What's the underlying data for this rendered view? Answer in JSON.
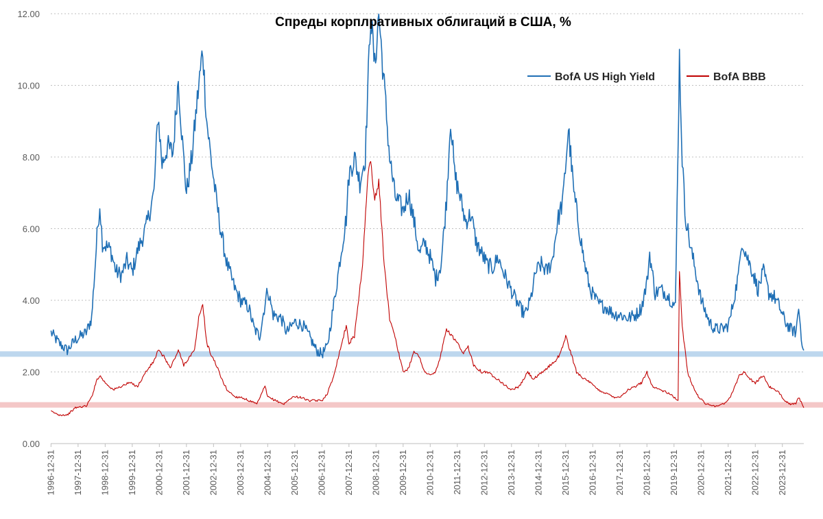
{
  "chart_data": {
    "type": "line",
    "title": "Спреды корплративных облигаций в США, %",
    "xlabel": "",
    "ylabel": "",
    "ylim": [
      0,
      12
    ],
    "y_ticks": [
      "0.00",
      "2.00",
      "4.00",
      "6.00",
      "8.00",
      "10.00",
      "12.00"
    ],
    "x_range": [
      1996.99,
      2024.79
    ],
    "x_ticks": [
      "1996-12-31",
      "1997-12-31",
      "1998-12-31",
      "1999-12-31",
      "2000-12-31",
      "2001-12-31",
      "2002-12-31",
      "2003-12-31",
      "2004-12-31",
      "2005-12-31",
      "2006-12-31",
      "2007-12-31",
      "2008-12-31",
      "2009-12-31",
      "2010-12-31",
      "2011-12-31",
      "2012-12-31",
      "2013-12-31",
      "2014-12-31",
      "2015-12-31",
      "2016-12-31",
      "2017-12-31",
      "2018-12-31",
      "2019-12-31",
      "2020-12-31",
      "2021-12-31",
      "2022-12-31",
      "2023-12-31"
    ],
    "grid": "horizontal-dotted",
    "legend": "top-right",
    "series": [
      {
        "name": "BofA US High Yield",
        "color": "#1f6fb5",
        "points": [
          [
            1997.0,
            3.1
          ],
          [
            1997.3,
            2.8
          ],
          [
            1997.6,
            2.6
          ],
          [
            1997.9,
            2.9
          ],
          [
            1998.3,
            3.1
          ],
          [
            1998.5,
            3.5
          ],
          [
            1998.7,
            5.8
          ],
          [
            1998.8,
            6.7
          ],
          [
            1998.9,
            5.6
          ],
          [
            1999.2,
            5.4
          ],
          [
            1999.4,
            4.8
          ],
          [
            1999.6,
            4.7
          ],
          [
            1999.8,
            5.1
          ],
          [
            2000.0,
            4.8
          ],
          [
            2000.2,
            5.4
          ],
          [
            2000.5,
            6.0
          ],
          [
            2000.8,
            7.0
          ],
          [
            2000.95,
            9.2
          ],
          [
            2001.1,
            7.8
          ],
          [
            2001.3,
            8.3
          ],
          [
            2001.5,
            8.1
          ],
          [
            2001.7,
            10.2
          ],
          [
            2001.85,
            8.4
          ],
          [
            2002.0,
            7.0
          ],
          [
            2002.2,
            8.0
          ],
          [
            2002.4,
            9.6
          ],
          [
            2002.6,
            11.0
          ],
          [
            2002.75,
            9.0
          ],
          [
            2002.9,
            8.0
          ],
          [
            2003.1,
            6.8
          ],
          [
            2003.3,
            5.8
          ],
          [
            2003.5,
            5.0
          ],
          [
            2003.8,
            4.3
          ],
          [
            2004.0,
            4.0
          ],
          [
            2004.3,
            3.8
          ],
          [
            2004.5,
            3.2
          ],
          [
            2004.7,
            3.0
          ],
          [
            2004.9,
            3.9
          ],
          [
            2005.0,
            4.3
          ],
          [
            2005.2,
            3.6
          ],
          [
            2005.5,
            3.5
          ],
          [
            2005.7,
            3.1
          ],
          [
            2006.0,
            3.4
          ],
          [
            2006.3,
            3.3
          ],
          [
            2006.6,
            2.9
          ],
          [
            2006.8,
            2.6
          ],
          [
            2007.0,
            2.5
          ],
          [
            2007.2,
            2.7
          ],
          [
            2007.5,
            4.2
          ],
          [
            2007.7,
            5.3
          ],
          [
            2007.9,
            6.3
          ],
          [
            2008.0,
            7.5
          ],
          [
            2008.2,
            8.0
          ],
          [
            2008.4,
            7.3
          ],
          [
            2008.6,
            8.0
          ],
          [
            2008.8,
            12.0
          ],
          [
            2008.95,
            10.5
          ],
          [
            2009.1,
            12.0
          ],
          [
            2009.3,
            10.0
          ],
          [
            2009.5,
            8.0
          ],
          [
            2009.7,
            6.9
          ],
          [
            2010.0,
            6.5
          ],
          [
            2010.2,
            7.0
          ],
          [
            2010.4,
            6.2
          ],
          [
            2010.6,
            5.3
          ],
          [
            2010.8,
            5.6
          ],
          [
            2011.0,
            5.2
          ],
          [
            2011.2,
            4.6
          ],
          [
            2011.4,
            5.0
          ],
          [
            2011.6,
            6.8
          ],
          [
            2011.75,
            9.1
          ],
          [
            2011.9,
            7.5
          ],
          [
            2012.1,
            6.9
          ],
          [
            2012.3,
            6.2
          ],
          [
            2012.5,
            6.4
          ],
          [
            2012.7,
            5.6
          ],
          [
            2012.9,
            5.3
          ],
          [
            2013.1,
            5.0
          ],
          [
            2013.3,
            4.9
          ],
          [
            2013.5,
            5.2
          ],
          [
            2013.8,
            4.6
          ],
          [
            2014.1,
            4.1
          ],
          [
            2014.3,
            3.8
          ],
          [
            2014.5,
            3.6
          ],
          [
            2014.7,
            4.0
          ],
          [
            2014.9,
            4.8
          ],
          [
            2015.1,
            5.0
          ],
          [
            2015.3,
            4.8
          ],
          [
            2015.5,
            5.1
          ],
          [
            2015.7,
            6.2
          ],
          [
            2015.9,
            6.8
          ],
          [
            2016.1,
            8.8
          ],
          [
            2016.3,
            7.0
          ],
          [
            2016.5,
            6.0
          ],
          [
            2016.7,
            5.0
          ],
          [
            2016.9,
            4.3
          ],
          [
            2017.2,
            3.9
          ],
          [
            2017.5,
            3.8
          ],
          [
            2017.8,
            3.6
          ],
          [
            2018.0,
            3.6
          ],
          [
            2018.3,
            3.5
          ],
          [
            2018.6,
            3.6
          ],
          [
            2018.8,
            3.8
          ],
          [
            2019.0,
            4.5
          ],
          [
            2019.1,
            5.3
          ],
          [
            2019.3,
            4.2
          ],
          [
            2019.5,
            4.3
          ],
          [
            2019.7,
            4.2
          ],
          [
            2019.9,
            4.0
          ],
          [
            2020.05,
            3.8
          ],
          [
            2020.2,
            10.8
          ],
          [
            2020.3,
            8.0
          ],
          [
            2020.4,
            6.5
          ],
          [
            2020.6,
            5.5
          ],
          [
            2020.8,
            4.8
          ],
          [
            2021.0,
            4.0
          ],
          [
            2021.3,
            3.4
          ],
          [
            2021.5,
            3.2
          ],
          [
            2021.8,
            3.2
          ],
          [
            2022.0,
            3.3
          ],
          [
            2022.1,
            3.6
          ],
          [
            2022.4,
            4.8
          ],
          [
            2022.5,
            5.7
          ],
          [
            2022.7,
            5.2
          ],
          [
            2022.9,
            4.8
          ],
          [
            2023.1,
            4.3
          ],
          [
            2023.3,
            4.8
          ],
          [
            2023.5,
            4.2
          ],
          [
            2023.7,
            4.1
          ],
          [
            2023.9,
            3.8
          ],
          [
            2024.1,
            3.4
          ],
          [
            2024.3,
            3.2
          ],
          [
            2024.5,
            3.1
          ],
          [
            2024.6,
            3.8
          ],
          [
            2024.7,
            3.0
          ],
          [
            2024.79,
            2.6
          ]
        ]
      },
      {
        "name": "BofA BBB",
        "color": "#c00000",
        "points": [
          [
            1997.0,
            0.9
          ],
          [
            1997.3,
            0.8
          ],
          [
            1997.6,
            0.8
          ],
          [
            1997.9,
            1.0
          ],
          [
            1998.3,
            1.05
          ],
          [
            1998.5,
            1.3
          ],
          [
            1998.7,
            1.8
          ],
          [
            1998.8,
            1.9
          ],
          [
            1999.0,
            1.7
          ],
          [
            1999.3,
            1.5
          ],
          [
            1999.6,
            1.6
          ],
          [
            1999.9,
            1.7
          ],
          [
            2000.2,
            1.6
          ],
          [
            2000.5,
            2.0
          ],
          [
            2000.8,
            2.3
          ],
          [
            2000.95,
            2.6
          ],
          [
            2001.2,
            2.4
          ],
          [
            2001.4,
            2.1
          ],
          [
            2001.7,
            2.6
          ],
          [
            2001.9,
            2.2
          ],
          [
            2002.1,
            2.4
          ],
          [
            2002.3,
            2.6
          ],
          [
            2002.45,
            3.5
          ],
          [
            2002.6,
            3.9
          ],
          [
            2002.75,
            2.8
          ],
          [
            2002.9,
            2.5
          ],
          [
            2003.1,
            2.2
          ],
          [
            2003.3,
            1.8
          ],
          [
            2003.5,
            1.5
          ],
          [
            2003.8,
            1.3
          ],
          [
            2004.0,
            1.3
          ],
          [
            2004.3,
            1.2
          ],
          [
            2004.6,
            1.1
          ],
          [
            2004.9,
            1.6
          ],
          [
            2005.0,
            1.3
          ],
          [
            2005.3,
            1.2
          ],
          [
            2005.6,
            1.1
          ],
          [
            2005.9,
            1.3
          ],
          [
            2006.2,
            1.3
          ],
          [
            2006.5,
            1.2
          ],
          [
            2006.8,
            1.2
          ],
          [
            2007.0,
            1.2
          ],
          [
            2007.2,
            1.4
          ],
          [
            2007.4,
            1.8
          ],
          [
            2007.6,
            2.4
          ],
          [
            2007.8,
            3.0
          ],
          [
            2007.9,
            3.3
          ],
          [
            2008.0,
            2.8
          ],
          [
            2008.2,
            3.0
          ],
          [
            2008.5,
            5.0
          ],
          [
            2008.7,
            7.5
          ],
          [
            2008.8,
            7.9
          ],
          [
            2008.95,
            6.8
          ],
          [
            2009.1,
            7.3
          ],
          [
            2009.3,
            5.0
          ],
          [
            2009.5,
            3.5
          ],
          [
            2009.7,
            3.0
          ],
          [
            2009.9,
            2.3
          ],
          [
            2010.0,
            2.0
          ],
          [
            2010.2,
            2.1
          ],
          [
            2010.4,
            2.6
          ],
          [
            2010.6,
            2.4
          ],
          [
            2010.8,
            2.0
          ],
          [
            2011.0,
            1.9
          ],
          [
            2011.2,
            2.0
          ],
          [
            2011.4,
            2.5
          ],
          [
            2011.6,
            3.2
          ],
          [
            2011.8,
            3.0
          ],
          [
            2012.0,
            2.8
          ],
          [
            2012.2,
            2.5
          ],
          [
            2012.4,
            2.7
          ],
          [
            2012.6,
            2.2
          ],
          [
            2012.9,
            2.0
          ],
          [
            2013.1,
            2.0
          ],
          [
            2013.3,
            1.9
          ],
          [
            2013.5,
            1.8
          ],
          [
            2013.8,
            1.6
          ],
          [
            2014.0,
            1.5
          ],
          [
            2014.3,
            1.6
          ],
          [
            2014.6,
            2.0
          ],
          [
            2014.8,
            1.8
          ],
          [
            2015.0,
            1.9
          ],
          [
            2015.3,
            2.1
          ],
          [
            2015.6,
            2.3
          ],
          [
            2015.8,
            2.5
          ],
          [
            2016.0,
            3.0
          ],
          [
            2016.2,
            2.5
          ],
          [
            2016.4,
            2.0
          ],
          [
            2016.7,
            1.8
          ],
          [
            2016.9,
            1.7
          ],
          [
            2017.2,
            1.5
          ],
          [
            2017.5,
            1.4
          ],
          [
            2017.8,
            1.3
          ],
          [
            2018.0,
            1.3
          ],
          [
            2018.3,
            1.5
          ],
          [
            2018.6,
            1.6
          ],
          [
            2018.8,
            1.7
          ],
          [
            2019.0,
            2.0
          ],
          [
            2019.2,
            1.6
          ],
          [
            2019.5,
            1.5
          ],
          [
            2019.8,
            1.4
          ],
          [
            2020.0,
            1.3
          ],
          [
            2020.15,
            1.2
          ],
          [
            2020.2,
            4.8
          ],
          [
            2020.3,
            3.3
          ],
          [
            2020.5,
            2.0
          ],
          [
            2020.7,
            1.6
          ],
          [
            2020.9,
            1.3
          ],
          [
            2021.2,
            1.1
          ],
          [
            2021.5,
            1.05
          ],
          [
            2021.8,
            1.1
          ],
          [
            2022.0,
            1.2
          ],
          [
            2022.2,
            1.5
          ],
          [
            2022.4,
            1.9
          ],
          [
            2022.6,
            2.0
          ],
          [
            2022.8,
            1.8
          ],
          [
            2023.0,
            1.7
          ],
          [
            2023.3,
            1.9
          ],
          [
            2023.5,
            1.6
          ],
          [
            2023.7,
            1.5
          ],
          [
            2023.9,
            1.4
          ],
          [
            2024.1,
            1.2
          ],
          [
            2024.3,
            1.1
          ],
          [
            2024.5,
            1.1
          ],
          [
            2024.6,
            1.3
          ],
          [
            2024.79,
            1.0
          ]
        ]
      }
    ],
    "reference_bands": [
      {
        "name": "high-yield-current-level",
        "value": 2.5,
        "color": "#bdd7ee"
      },
      {
        "name": "bbb-current-level",
        "value": 1.08,
        "color": "#f4c7c7"
      }
    ]
  }
}
